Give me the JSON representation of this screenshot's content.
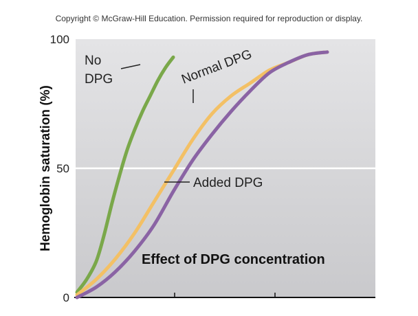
{
  "copyright": "Copyright © McGraw-Hill Education. Permission required for reproduction or display.",
  "chart_data": {
    "type": "line",
    "title": "Effect of DPG concentration",
    "xlabel": "",
    "ylabel": "Hemoglobin saturation (%)",
    "ylim": [
      0,
      100
    ],
    "yticks": [
      "0",
      "50",
      "100"
    ],
    "grid": "horizontal line at 50",
    "colors": {
      "no_dpg": "#7aa84a",
      "normal_dpg": "#f3c065",
      "added_dpg": "#8a63a4",
      "plot_top": "#e4e4e6",
      "plot_bottom": "#c9c9cc"
    },
    "series": [
      {
        "key": "no_dpg",
        "label_lines": [
          "No",
          "DPG"
        ],
        "x": [
          0,
          5,
          10,
          14,
          18,
          22,
          26,
          30,
          34,
          38,
          42,
          46,
          50
        ],
        "values": [
          2,
          7,
          14,
          24,
          36,
          47,
          57,
          65,
          72,
          78,
          84,
          89,
          93
        ]
      },
      {
        "key": "normal_dpg",
        "label": "Normal DPG",
        "x": [
          0,
          10,
          20,
          30,
          40,
          50,
          60,
          70,
          80,
          90,
          100,
          110,
          120,
          130
        ],
        "values": [
          1,
          7,
          15,
          25,
          37,
          49,
          61,
          71,
          78,
          83,
          88,
          91,
          94,
          95
        ]
      },
      {
        "key": "added_dpg",
        "label": "Added DPG",
        "x": [
          0,
          10,
          20,
          30,
          40,
          50,
          60,
          70,
          80,
          90,
          100,
          110,
          120,
          130
        ],
        "values": [
          0,
          4,
          10,
          18,
          28,
          41,
          53,
          63,
          72,
          80,
          87,
          91,
          94,
          95
        ]
      }
    ]
  }
}
